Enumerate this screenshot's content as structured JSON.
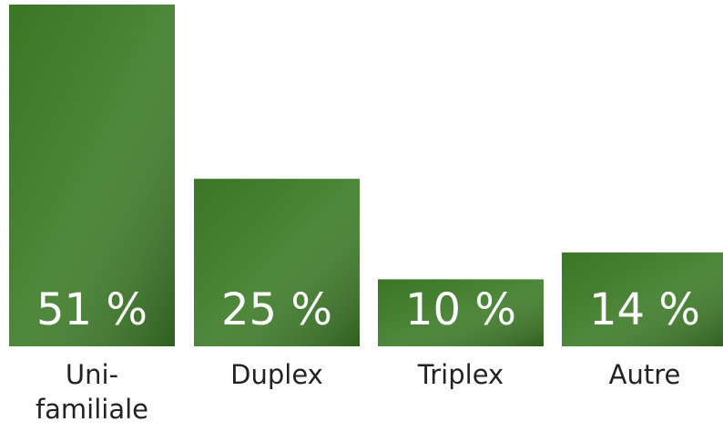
{
  "chart_data": {
    "type": "bar",
    "categories": [
      "Uni-familiale",
      "Duplex",
      "Triplex",
      "Autre"
    ],
    "values": [
      51,
      25,
      10,
      14
    ],
    "value_labels": [
      "51 %",
      "25 %",
      "10 %",
      "14 %"
    ],
    "color": "#3f7d2a"
  }
}
